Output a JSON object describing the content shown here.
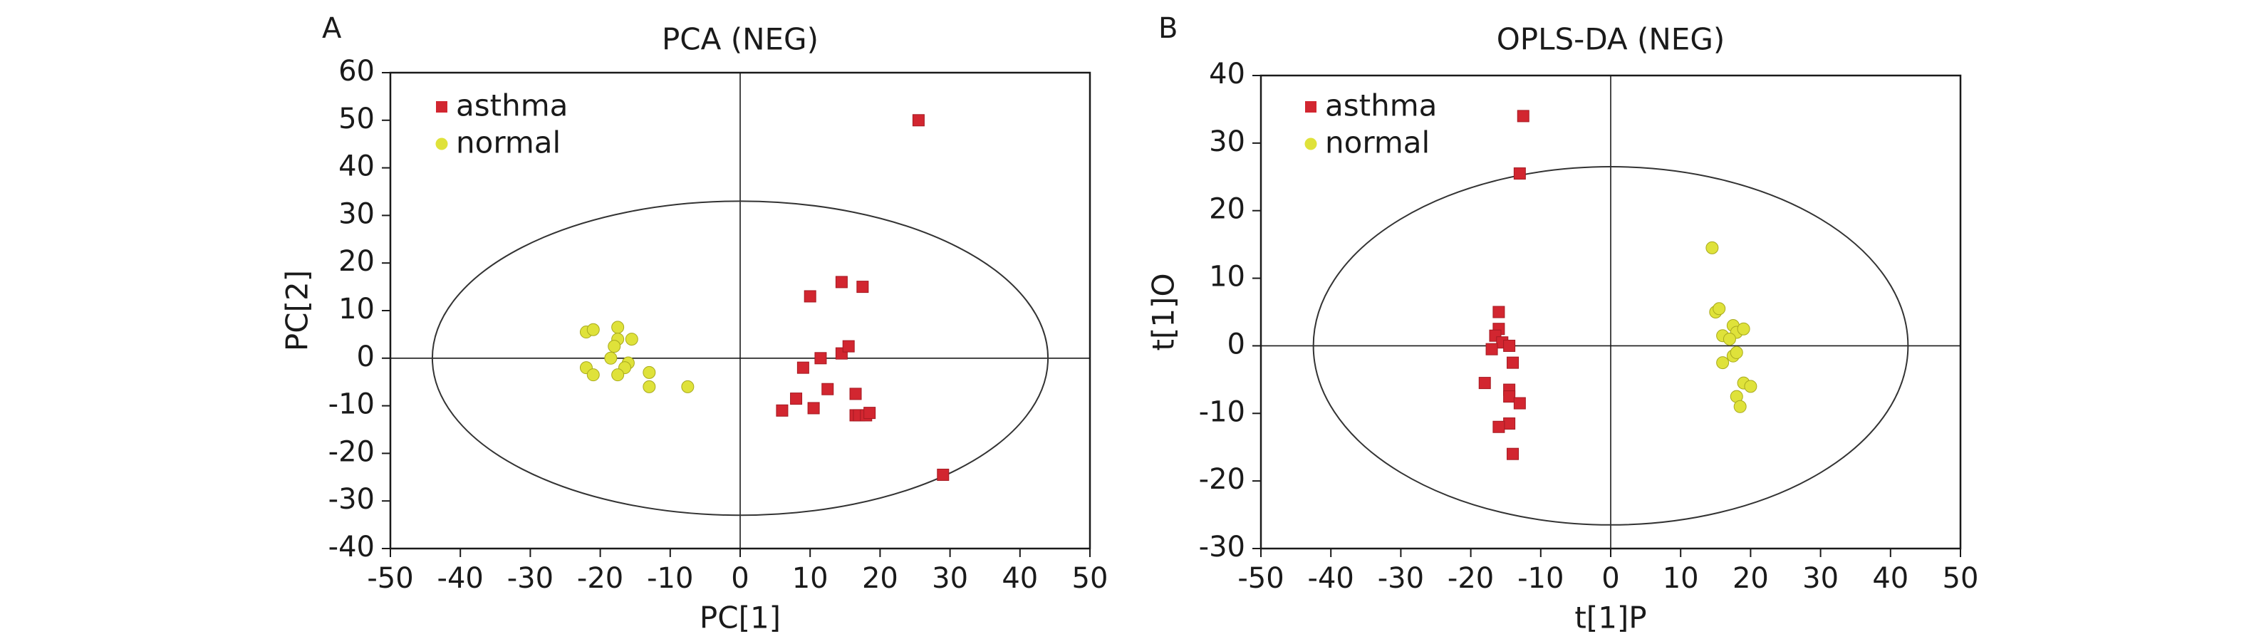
{
  "chart_data": [
    {
      "type": "scatter",
      "panel_label": "A",
      "title": "PCA (NEG)",
      "xlabel": "PC[1]",
      "ylabel": "PC[2]",
      "xlim": [
        -50,
        50
      ],
      "ylim": [
        -40,
        60
      ],
      "xticks": [
        -50,
        -40,
        -30,
        -20,
        -10,
        0,
        10,
        20,
        30,
        40,
        50
      ],
      "yticks": [
        -40,
        -30,
        -20,
        -10,
        0,
        10,
        20,
        30,
        40,
        50,
        60
      ],
      "grid": false,
      "legend": "top-left",
      "ellipse": {
        "rx": 44,
        "ry": 33
      },
      "series": [
        {
          "name": "asthma",
          "marker": "square",
          "color": "#d22630",
          "points": [
            [
              25.5,
              50
            ],
            [
              29,
              -24.5
            ],
            [
              10,
              13
            ],
            [
              14.5,
              16
            ],
            [
              17.5,
              15
            ],
            [
              9,
              -2
            ],
            [
              11.5,
              0
            ],
            [
              14.5,
              1
            ],
            [
              15.5,
              2.5
            ],
            [
              12.5,
              -6.5
            ],
            [
              8,
              -8.5
            ],
            [
              6,
              -11
            ],
            [
              10.5,
              -10.5
            ],
            [
              16.5,
              -7.5
            ],
            [
              16.5,
              -12
            ],
            [
              17,
              -12
            ],
            [
              18,
              -12
            ],
            [
              18.5,
              -11.5
            ]
          ]
        },
        {
          "name": "normal",
          "marker": "circle",
          "color": "#dfe23a",
          "points": [
            [
              -22,
              5.5
            ],
            [
              -21,
              6
            ],
            [
              -17.5,
              6.5
            ],
            [
              -17.5,
              4
            ],
            [
              -15.5,
              4
            ],
            [
              -18,
              2.5
            ],
            [
              -18.5,
              0
            ],
            [
              -16,
              -1
            ],
            [
              -16.5,
              -2
            ],
            [
              -13,
              -3
            ],
            [
              -17.5,
              -3.5
            ],
            [
              -22,
              -2
            ],
            [
              -21,
              -3.5
            ],
            [
              -13,
              -6
            ],
            [
              -7.5,
              -6
            ]
          ]
        }
      ]
    },
    {
      "type": "scatter",
      "panel_label": "B",
      "title": "OPLS-DA (NEG)",
      "xlabel": "t[1]P",
      "ylabel": "t[1]O",
      "xlim": [
        -50,
        50
      ],
      "ylim": [
        -30,
        40
      ],
      "xticks": [
        -50,
        -40,
        -30,
        -20,
        -10,
        0,
        10,
        20,
        30,
        40,
        50
      ],
      "yticks": [
        -30,
        -20,
        -10,
        0,
        10,
        20,
        30,
        40
      ],
      "grid": false,
      "legend": "top-left",
      "ellipse": {
        "rx": 42.5,
        "ry": 26.5
      },
      "series": [
        {
          "name": "asthma",
          "marker": "square",
          "color": "#d22630",
          "points": [
            [
              -12.5,
              34
            ],
            [
              -13,
              25.5
            ],
            [
              -16,
              5
            ],
            [
              -16,
              2.5
            ],
            [
              -16.5,
              1.5
            ],
            [
              -15.5,
              0.5
            ],
            [
              -14.5,
              0
            ],
            [
              -17,
              -0.5
            ],
            [
              -14,
              -2.5
            ],
            [
              -14.5,
              -6.5
            ],
            [
              -14.5,
              -7.5
            ],
            [
              -13,
              -8.5
            ],
            [
              -18,
              -5.5
            ],
            [
              -14.5,
              -11.5
            ],
            [
              -16,
              -12
            ],
            [
              -14,
              -16
            ]
          ]
        },
        {
          "name": "normal",
          "marker": "circle",
          "color": "#dfe23a",
          "points": [
            [
              14.5,
              14.5
            ],
            [
              15,
              5
            ],
            [
              15.5,
              5.5
            ],
            [
              16,
              1.5
            ],
            [
              17.5,
              3
            ],
            [
              18,
              2
            ],
            [
              19,
              2.5
            ],
            [
              17,
              1
            ],
            [
              17.5,
              -1.5
            ],
            [
              18,
              -1
            ],
            [
              16,
              -2.5
            ],
            [
              19,
              -5.5
            ],
            [
              20,
              -6
            ],
            [
              18,
              -7.5
            ],
            [
              18.5,
              -9
            ]
          ]
        }
      ]
    }
  ]
}
